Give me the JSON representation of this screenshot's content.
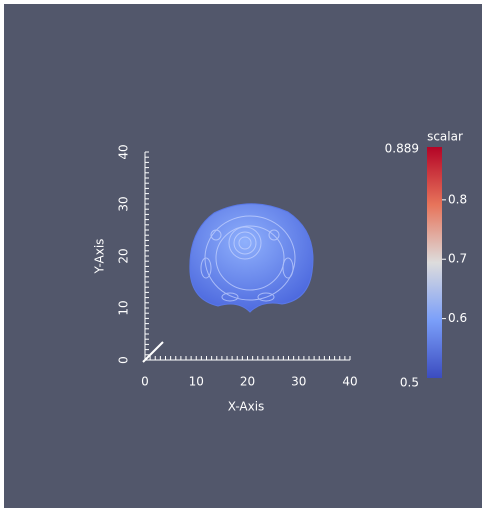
{
  "x_axis": {
    "title": "X-Axis",
    "ticks": [
      0,
      10,
      20,
      30,
      40
    ]
  },
  "y_axis": {
    "title": "Y-Axis",
    "ticks": [
      0,
      10,
      20,
      30,
      40
    ]
  },
  "color_bar": {
    "title": "scalar",
    "max": 0.889,
    "min": 0.5,
    "ticks": [
      0.8,
      0.7,
      0.6
    ]
  }
}
